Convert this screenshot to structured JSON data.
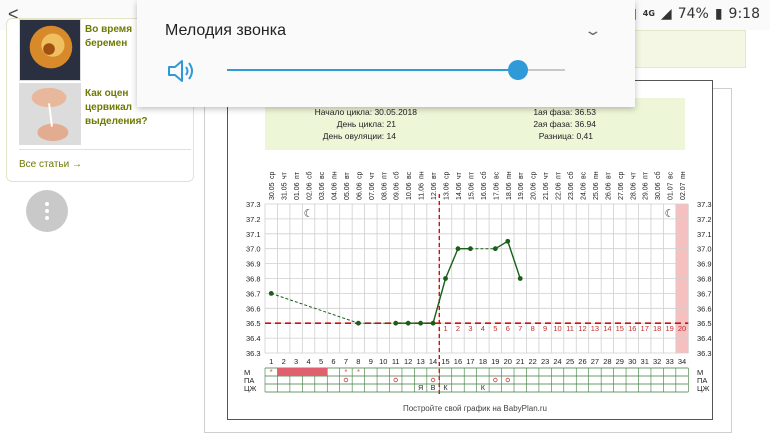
{
  "status_bar": {
    "battery": "74%",
    "time": "9:18",
    "network": "4G"
  },
  "sound_dialog": {
    "title": "Мелодия звонка",
    "volume_percent": 86
  },
  "articles": {
    "items": [
      {
        "title": "Во время\nберемен"
      },
      {
        "title": "Как оцен\nцервикал\nвыделения?"
      }
    ],
    "all_link": "Все статьи →"
  },
  "summary": {
    "cycle_start": "Начало цикла: 30.05.2018",
    "cycle_day": "День цикла: 21",
    "ovulation_day": "День овуляции: 14",
    "phase1": "1ая фаза: 36.53",
    "phase2": "2ая фаза: 36.94",
    "difference": "Разница: 0,41"
  },
  "footer": "Постройте свой график на BabyPlan.ru",
  "row_labels": [
    "М",
    "ПА",
    "ЦЖ"
  ],
  "colors": {
    "temp_line": "#1a5e1a",
    "coverline": "#cc1111",
    "period": "#e06070",
    "tint": "#f1f8de"
  },
  "chart_data": {
    "type": "line",
    "title": "",
    "xlabel": "",
    "ylabel": "",
    "ylim": [
      36.3,
      37.3
    ],
    "y_ticks": [
      "37.3",
      "37.2",
      "37.1",
      "37.0",
      "36.9",
      "36.8",
      "36.7",
      "36.6",
      "36.5",
      "36.4",
      "36.3"
    ],
    "days": [
      "1",
      "2",
      "3",
      "4",
      "5",
      "6",
      "7",
      "8",
      "9",
      "10",
      "11",
      "12",
      "13",
      "14",
      "15",
      "16",
      "17",
      "18",
      "19",
      "20",
      "21",
      "22",
      "23",
      "24",
      "25",
      "26",
      "27",
      "28",
      "29",
      "30",
      "31",
      "32",
      "33",
      "34"
    ],
    "weekdays": [
      "ср",
      "чт",
      "пт",
      "сб",
      "вс",
      "пн",
      "вт",
      "ср",
      "чт",
      "пт",
      "сб",
      "вс",
      "пн",
      "вт",
      "ср",
      "чт",
      "пт",
      "сб",
      "вс",
      "пн",
      "вт",
      "ср",
      "чт",
      "пт",
      "сб",
      "вс",
      "пн",
      "вт",
      "ср",
      "чт",
      "пт",
      "сб",
      "вс",
      "пн"
    ],
    "dates": [
      "30.05",
      "31.05",
      "01.06",
      "02.06",
      "03.06",
      "04.06",
      "05.06",
      "06.06",
      "07.06",
      "08.06",
      "09.06",
      "10.06",
      "11.06",
      "12.06",
      "13.06",
      "14.06",
      "15.06",
      "16.06",
      "17.06",
      "18.06",
      "19.06",
      "20.06",
      "21.06",
      "22.06",
      "23.06",
      "24.06",
      "25.06",
      "26.06",
      "27.06",
      "28.06",
      "29.06",
      "30.06",
      "01.07",
      "02.07"
    ],
    "temperatures": [
      {
        "day": 1,
        "value": 36.7
      },
      {
        "day": 8,
        "value": 36.5
      },
      {
        "day": 11,
        "value": 36.5
      },
      {
        "day": 12,
        "value": 36.5
      },
      {
        "day": 13,
        "value": 36.5
      },
      {
        "day": 14,
        "value": 36.5
      },
      {
        "day": 15,
        "value": 36.8
      },
      {
        "day": 16,
        "value": 37.0
      },
      {
        "day": 17,
        "value": 37.0
      },
      {
        "day": 19,
        "value": 37.0
      },
      {
        "day": 20,
        "value": 37.05
      },
      {
        "day": 21,
        "value": 36.8
      }
    ],
    "coverline": 36.5,
    "ovulation_day": 14,
    "luteal_day_labels": [
      "1",
      "2",
      "3",
      "4",
      "5",
      "6",
      "7",
      "8",
      "9",
      "10",
      "11",
      "12",
      "13",
      "14",
      "15",
      "16",
      "17",
      "18",
      "19",
      "20"
    ],
    "period_days": [
      2,
      3,
      4,
      5
    ],
    "m_star_days": [
      1,
      7,
      8
    ],
    "pa_days": [
      7,
      11,
      14,
      19,
      20
    ],
    "cz_marks": [
      {
        "day": 13,
        "text": "Я"
      },
      {
        "day": 14,
        "text": "В"
      },
      {
        "day": 15,
        "text": "К"
      },
      {
        "day": 18,
        "text": "К"
      }
    ],
    "highlight_day": 34,
    "moon_days": [
      4,
      33
    ]
  }
}
